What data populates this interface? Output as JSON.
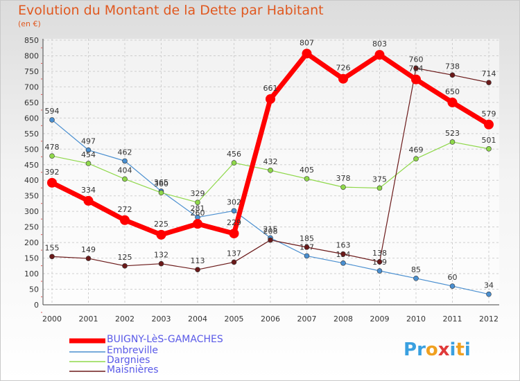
{
  "chart_data": {
    "type": "line",
    "title": "Evolution du Montant de la Dette par Habitant",
    "subtitle": "(en €)",
    "categories": [
      "2000",
      "2001",
      "2002",
      "2003",
      "2004",
      "2005",
      "2006",
      "2007",
      "2008",
      "2009",
      "2010",
      "2011",
      "2012"
    ],
    "ylim": [
      0,
      850
    ],
    "yticks": [
      0,
      50,
      100,
      150,
      200,
      250,
      300,
      350,
      400,
      450,
      500,
      550,
      600,
      650,
      700,
      750,
      800,
      850
    ],
    "grid": true,
    "legend_position": "bottom-left",
    "series": [
      {
        "name": "BUIGNY-LèS-GAMACHES",
        "color": "#ff0000",
        "values": [
          392,
          334,
          272,
          225,
          260,
          229,
          661,
          807,
          726,
          803,
          724,
          650,
          579
        ]
      },
      {
        "name": "Embreville",
        "color": "#4a8fd0",
        "values": [
          594,
          497,
          462,
          365,
          281,
          302,
          215,
          157,
          134,
          109,
          85,
          60,
          34
        ]
      },
      {
        "name": "Dargnies",
        "color": "#8fd84a",
        "values": [
          478,
          454,
          404,
          360,
          329,
          456,
          432,
          405,
          378,
          375,
          469,
          523,
          501
        ]
      },
      {
        "name": "Maisnières",
        "color": "#6b1a1a",
        "values": [
          155,
          149,
          125,
          132,
          113,
          137,
          208,
          185,
          163,
          138,
          760,
          738,
          714
        ]
      }
    ]
  },
  "logo": {
    "text": "Proxiti",
    "letters": [
      "P",
      "r",
      "o",
      "x",
      "i",
      "t",
      "i"
    ],
    "colors": [
      "#3aa0e0",
      "#3aa0e0",
      "#f0a020",
      "#e03a3a",
      "#3aa0e0",
      "#f0a020",
      "#3aa0e0"
    ]
  }
}
